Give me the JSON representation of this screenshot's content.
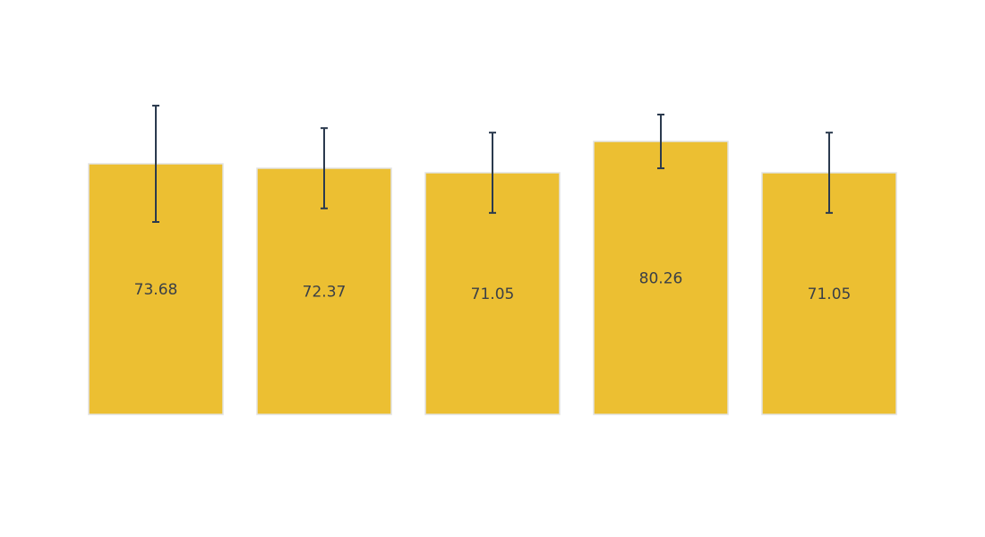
{
  "chart_data": {
    "type": "bar",
    "categories": [
      "",
      "",
      "",
      "",
      ""
    ],
    "values": [
      73.68,
      72.37,
      71.05,
      80.26,
      71.05
    ],
    "labels": [
      "73.68",
      "72.37",
      "71.05",
      "80.26",
      "71.05"
    ],
    "error": [
      17.1,
      11.8,
      11.8,
      7.9,
      11.8
    ],
    "ylim": [
      0,
      90
    ],
    "grid": false,
    "show_axes": false,
    "colors": {
      "bar_fill": "#ecbf32",
      "bar_stroke": "#e2e2e2",
      "error_bar": "#2b3a4e",
      "label_text": "#3a3f47",
      "background": "#ffffff"
    }
  }
}
